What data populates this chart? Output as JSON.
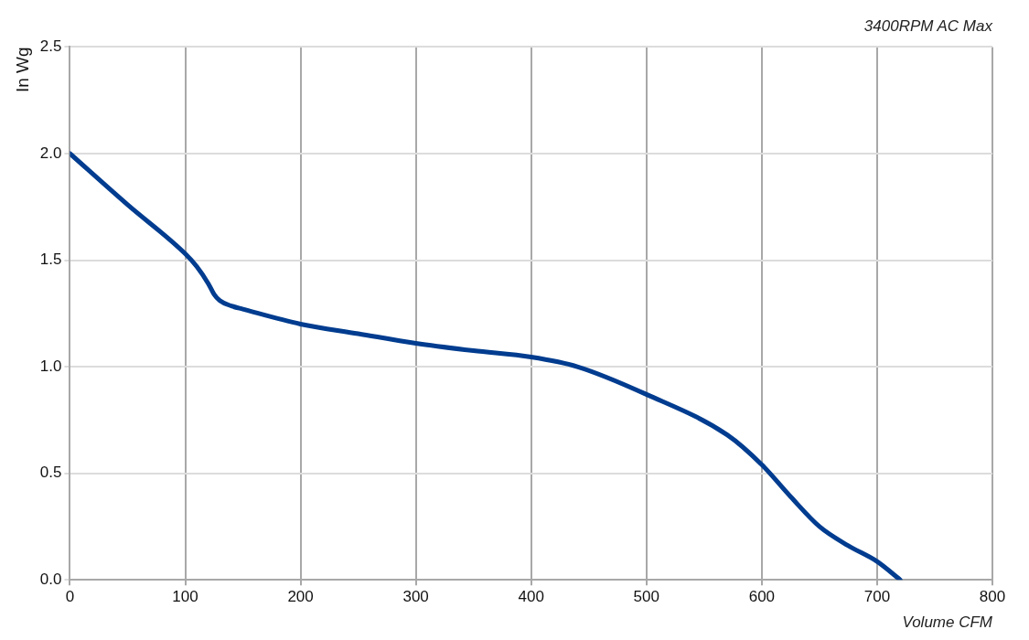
{
  "chart_data": {
    "type": "line",
    "title": "3400RPM AC Max",
    "xlabel": "Volume CFM",
    "ylabel": "In Wg",
    "x": [
      0,
      50,
      100,
      110,
      120,
      125,
      130,
      140,
      150,
      200,
      250,
      300,
      350,
      400,
      440,
      500,
      570,
      600,
      625,
      650,
      675,
      700,
      720
    ],
    "series": [
      {
        "color": "#003c8f",
        "values": [
          2.0,
          1.76,
          1.53,
          1.47,
          1.39,
          1.34,
          1.31,
          1.285,
          1.27,
          1.2,
          1.155,
          1.11,
          1.075,
          1.045,
          1.0,
          0.87,
          0.68,
          0.54,
          0.39,
          0.25,
          0.16,
          0.086,
          0.0
        ]
      }
    ],
    "xlim": [
      0,
      800
    ],
    "xticks": [
      0,
      100,
      200,
      300,
      400,
      500,
      600,
      700,
      800
    ],
    "ylim": [
      0,
      2.5
    ],
    "yticks": [
      {
        "value": 0,
        "label": "0.0"
      },
      {
        "value": 0.5,
        "label": "0.5"
      },
      {
        "value": 1,
        "label": "1.0"
      },
      {
        "value": 1.5,
        "label": "1.5"
      },
      {
        "value": 2,
        "label": "2.0"
      },
      {
        "value": 2.5,
        "label": "2.5"
      }
    ],
    "grid": true,
    "legend": false,
    "marker": "none",
    "line_style": "solid"
  }
}
